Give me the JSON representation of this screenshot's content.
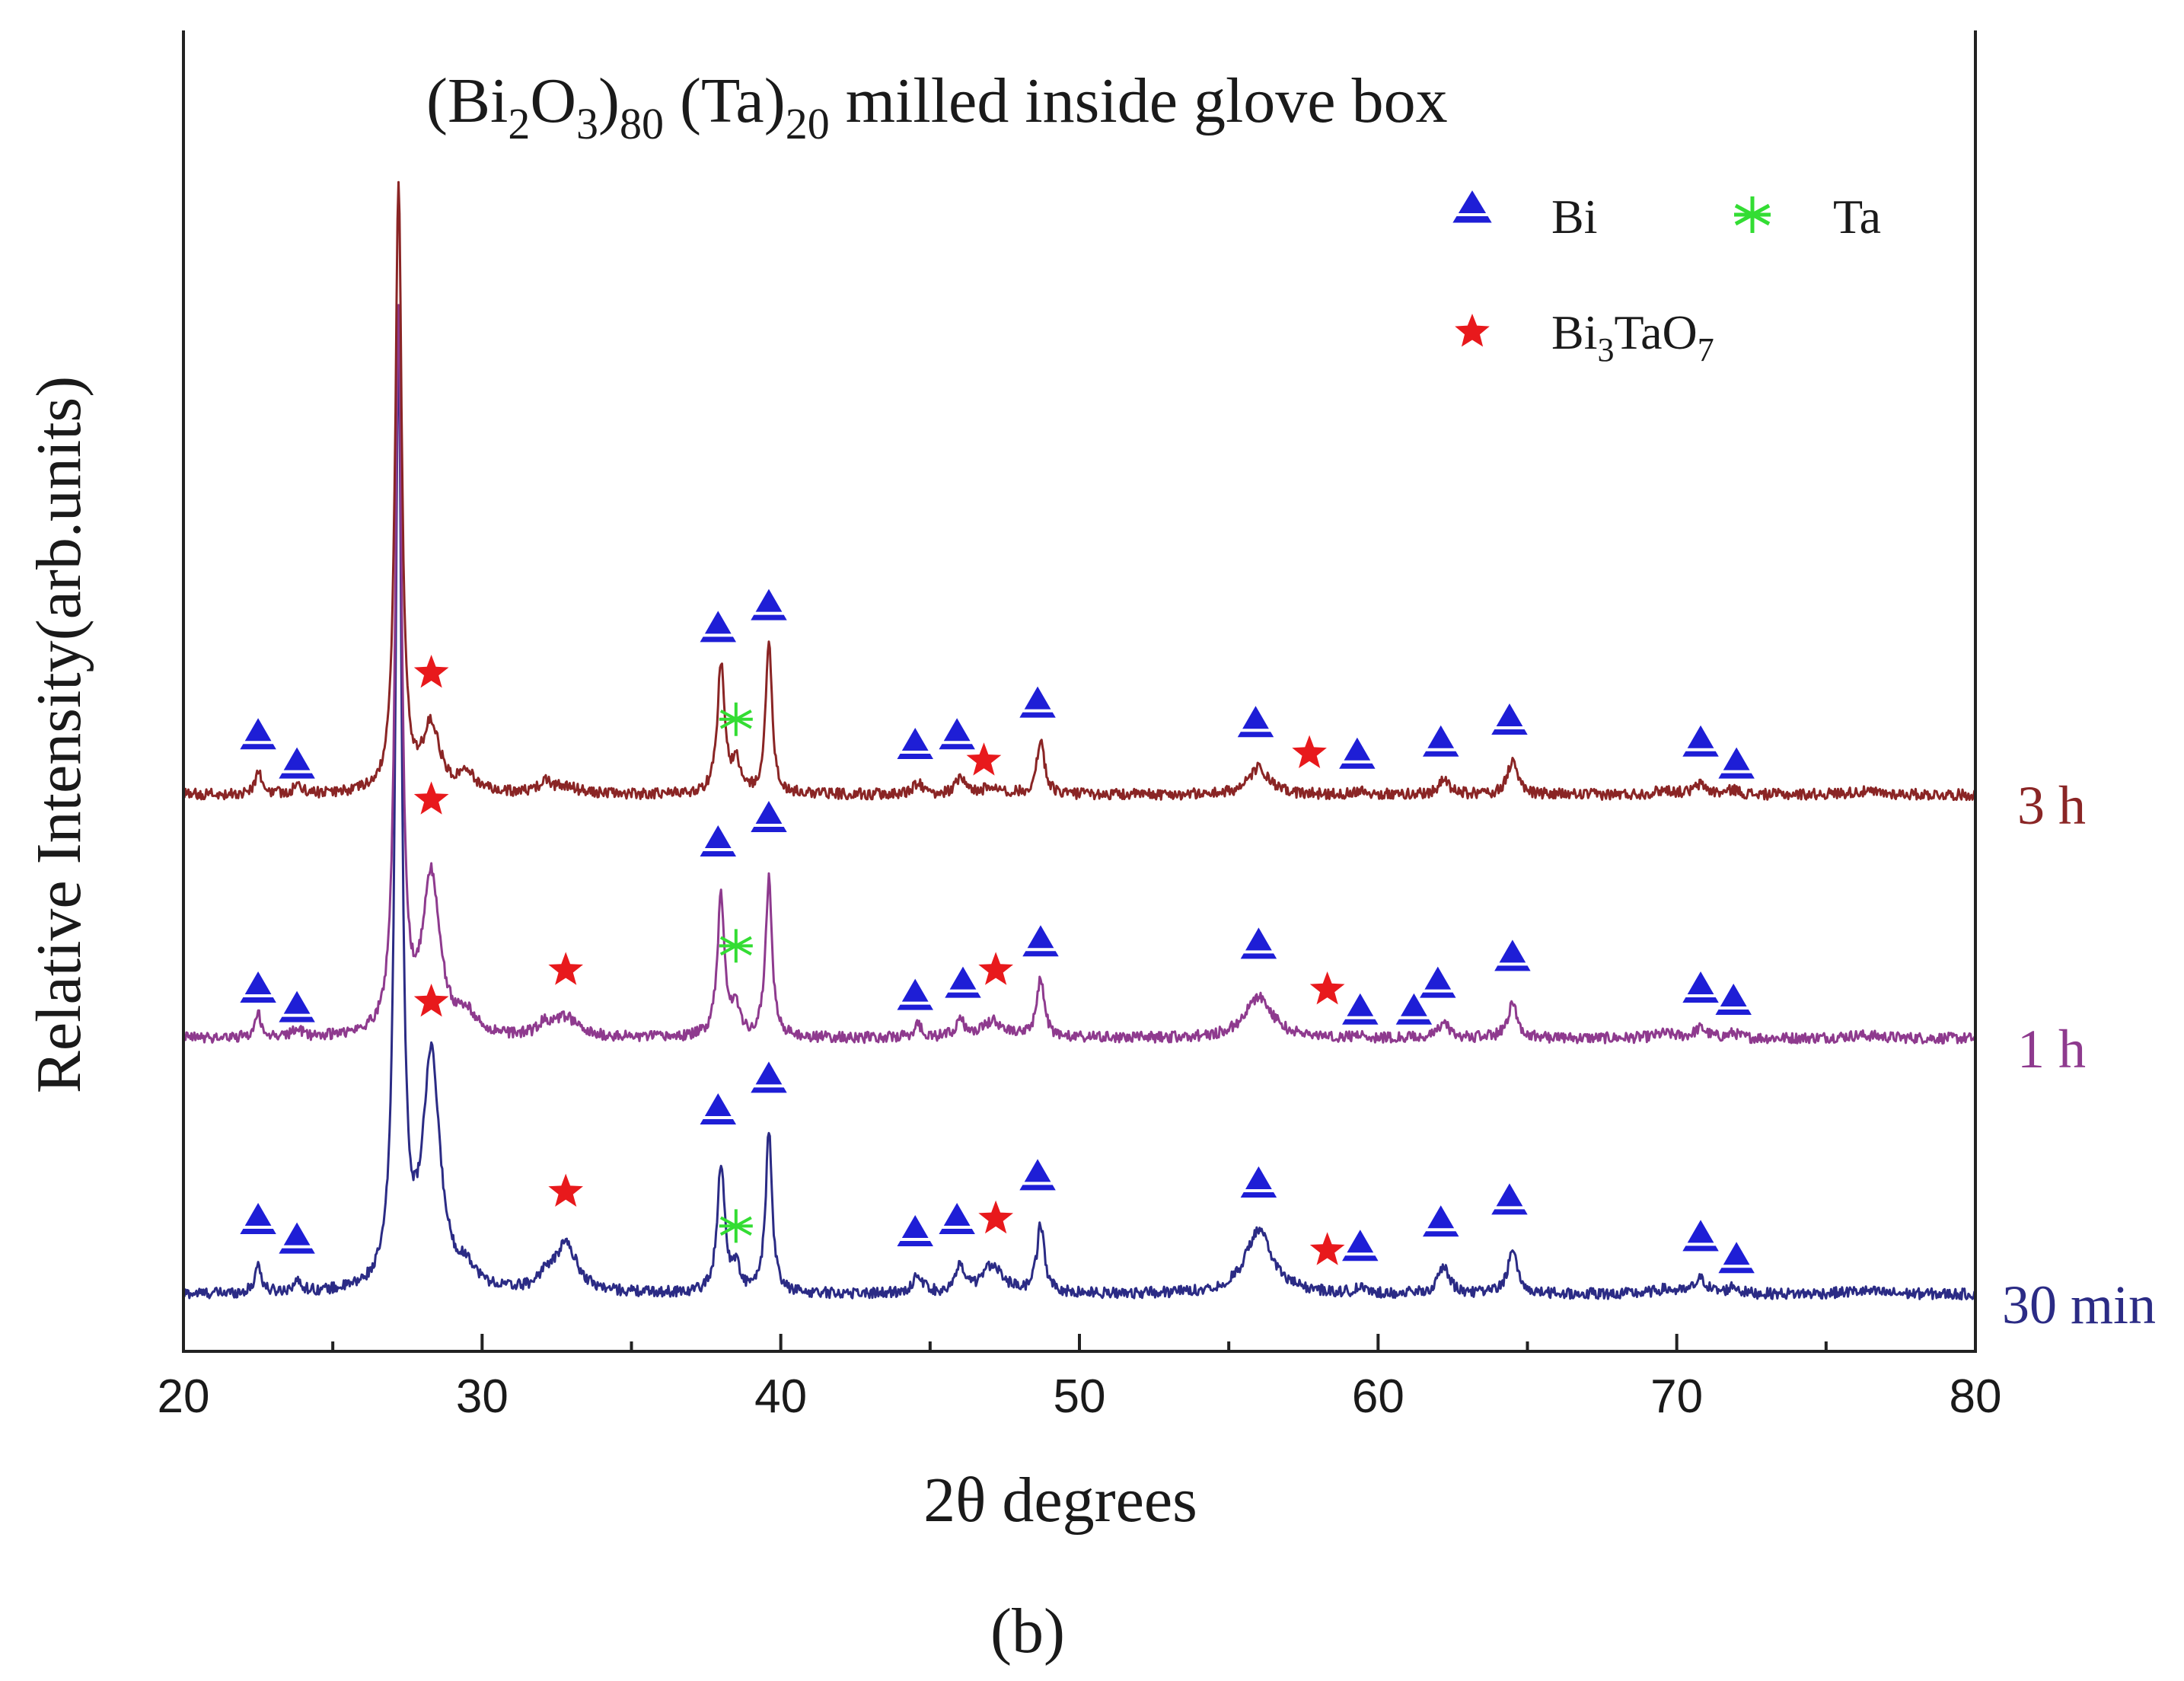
{
  "chart_data": {
    "type": "line",
    "title": {
      "prefix": "(Bi",
      "sub1": "2",
      "mid1": "O",
      "sub2": "3",
      "mid2": ")",
      "sub3": "80",
      "mid3": " (Ta)",
      "sub4": "20",
      "suffix": " milled inside glove box"
    },
    "xlabel": "2θ degrees",
    "ylabel": "Relative Intensity(arb.units)",
    "xlim": [
      20,
      80
    ],
    "x_ticks": [
      "20",
      "30",
      "40",
      "50",
      "60",
      "70",
      "80"
    ],
    "caption": "(b)",
    "legend": {
      "placement": "top-right",
      "entries": [
        {
          "name": "Bi",
          "marker": "triangle",
          "color": "#1e1ed6"
        },
        {
          "name": "Ta",
          "marker": "asterisk",
          "color": "#33dd33"
        },
        {
          "name_main": "Bi",
          "name_sub1": "3",
          "name_mid": "TaO",
          "name_sub2": "7",
          "marker": "star",
          "color": "#e8191c"
        }
      ]
    },
    "background_peaks": [
      {
        "x": 29.5,
        "h": 0.12,
        "w": 0.35
      },
      {
        "x": 32.1,
        "h": 0.08,
        "w": 0.25
      },
      {
        "x": 69.6,
        "h": 0.03,
        "w": 0.4
      },
      {
        "x": 76.2,
        "h": 0.02,
        "w": 0.8
      }
    ],
    "series": [
      {
        "name": "30 min",
        "color": "#2b2b85",
        "baseline_y": 0,
        "peaks": [
          {
            "x": 22.5,
            "h": 0.12,
            "w": 0.12
          },
          {
            "x": 23.8,
            "h": 0.04,
            "w": 0.2
          },
          {
            "x": 27.2,
            "h": 3.85,
            "w": 0.13
          },
          {
            "x": 28.3,
            "h": 0.95,
            "w": 0.35
          },
          {
            "x": 32.8,
            "h": 0.2,
            "w": 0.45
          },
          {
            "x": 38.0,
            "h": 0.53,
            "w": 0.15
          },
          {
            "x": 38.5,
            "h": 0.1,
            "w": 0.15
          },
          {
            "x": 39.6,
            "h": 0.66,
            "w": 0.13
          },
          {
            "x": 44.6,
            "h": 0.08,
            "w": 0.18
          },
          {
            "x": 46.0,
            "h": 0.1,
            "w": 0.18
          },
          {
            "x": 47.1,
            "h": 0.12,
            "w": 0.4
          },
          {
            "x": 48.7,
            "h": 0.28,
            "w": 0.15
          },
          {
            "x": 56.0,
            "h": 0.26,
            "w": 0.55
          },
          {
            "x": 59.4,
            "h": 0.02,
            "w": 0.2
          },
          {
            "x": 62.2,
            "h": 0.11,
            "w": 0.22
          },
          {
            "x": 64.5,
            "h": 0.17,
            "w": 0.2
          },
          {
            "x": 70.8,
            "h": 0.06,
            "w": 0.25
          },
          {
            "x": 71.9,
            "h": 0.03,
            "w": 0.2
          }
        ],
        "markers": [
          {
            "type": "triangle",
            "x": 22.5,
            "y": 0.3
          },
          {
            "type": "triangle",
            "x": 23.8,
            "y": 0.22
          },
          {
            "type": "star",
            "x": 28.3,
            "y": 1.2
          },
          {
            "type": "star",
            "x": 32.8,
            "y": 0.42
          },
          {
            "type": "triangle",
            "x": 37.9,
            "y": 0.75
          },
          {
            "type": "asterisk",
            "x": 38.5,
            "y": 0.28
          },
          {
            "type": "triangle",
            "x": 39.6,
            "y": 0.88
          },
          {
            "type": "triangle",
            "x": 44.5,
            "y": 0.25
          },
          {
            "type": "triangle",
            "x": 45.9,
            "y": 0.3
          },
          {
            "type": "star",
            "x": 47.2,
            "y": 0.31
          },
          {
            "type": "triangle",
            "x": 48.6,
            "y": 0.48
          },
          {
            "type": "triangle",
            "x": 56.0,
            "y": 0.45
          },
          {
            "type": "star",
            "x": 58.3,
            "y": 0.18
          },
          {
            "type": "triangle",
            "x": 59.4,
            "y": 0.19
          },
          {
            "type": "triangle",
            "x": 62.1,
            "y": 0.29
          },
          {
            "type": "triangle",
            "x": 64.4,
            "y": 0.38
          },
          {
            "type": "triangle",
            "x": 70.8,
            "y": 0.23
          },
          {
            "type": "triangle",
            "x": 72.0,
            "y": 0.14
          }
        ]
      },
      {
        "name": "1 h",
        "color": "#8e3a8e",
        "baseline_y": 1.05,
        "peaks": [
          {
            "x": 22.5,
            "h": 0.1,
            "w": 0.12
          },
          {
            "x": 23.8,
            "h": 0.03,
            "w": 0.2
          },
          {
            "x": 27.2,
            "h": 2.95,
            "w": 0.13
          },
          {
            "x": 28.3,
            "h": 0.65,
            "w": 0.35
          },
          {
            "x": 32.8,
            "h": 0.08,
            "w": 0.45
          },
          {
            "x": 38.0,
            "h": 0.58,
            "w": 0.15
          },
          {
            "x": 38.5,
            "h": 0.12,
            "w": 0.15
          },
          {
            "x": 39.6,
            "h": 0.65,
            "w": 0.13
          },
          {
            "x": 44.6,
            "h": 0.05,
            "w": 0.18
          },
          {
            "x": 46.0,
            "h": 0.07,
            "w": 0.18
          },
          {
            "x": 47.1,
            "h": 0.07,
            "w": 0.4
          },
          {
            "x": 48.7,
            "h": 0.25,
            "w": 0.15
          },
          {
            "x": 56.0,
            "h": 0.17,
            "w": 0.55
          },
          {
            "x": 59.4,
            "h": 0.01,
            "w": 0.2
          },
          {
            "x": 62.2,
            "h": 0.06,
            "w": 0.22
          },
          {
            "x": 64.5,
            "h": 0.14,
            "w": 0.2
          },
          {
            "x": 70.8,
            "h": 0.04,
            "w": 0.25
          },
          {
            "x": 71.9,
            "h": 0.02,
            "w": 0.2
          }
        ],
        "markers": [
          {
            "type": "triangle",
            "x": 22.5,
            "y": 0.2
          },
          {
            "type": "triangle",
            "x": 23.8,
            "y": 0.12
          },
          {
            "type": "star",
            "x": 28.3,
            "y": 0.98
          },
          {
            "type": "star",
            "x": 32.8,
            "y": 0.28
          },
          {
            "type": "triangle",
            "x": 37.9,
            "y": 0.8
          },
          {
            "type": "asterisk",
            "x": 38.5,
            "y": 0.38
          },
          {
            "type": "triangle",
            "x": 39.6,
            "y": 0.9
          },
          {
            "type": "triangle",
            "x": 44.5,
            "y": 0.17
          },
          {
            "type": "triangle",
            "x": 46.1,
            "y": 0.22
          },
          {
            "type": "star",
            "x": 47.2,
            "y": 0.28
          },
          {
            "type": "triangle",
            "x": 48.7,
            "y": 0.39
          },
          {
            "type": "triangle",
            "x": 56.0,
            "y": 0.38
          },
          {
            "type": "star",
            "x": 58.3,
            "y": 0.2
          },
          {
            "type": "triangle",
            "x": 59.4,
            "y": 0.11
          },
          {
            "type": "triangle",
            "x": 61.2,
            "y": 0.11
          },
          {
            "type": "triangle",
            "x": 62.0,
            "y": 0.22
          },
          {
            "type": "triangle",
            "x": 64.5,
            "y": 0.33
          },
          {
            "type": "triangle",
            "x": 70.8,
            "y": 0.2
          },
          {
            "type": "triangle",
            "x": 71.9,
            "y": 0.15
          }
        ]
      },
      {
        "name": "3 h",
        "color": "#8a2525",
        "baseline_y": 2.05,
        "peaks": [
          {
            "x": 22.5,
            "h": 0.1,
            "w": 0.12
          },
          {
            "x": 23.8,
            "h": 0.03,
            "w": 0.2
          },
          {
            "x": 27.2,
            "h": 2.5,
            "w": 0.13
          },
          {
            "x": 28.3,
            "h": 0.27,
            "w": 0.35
          },
          {
            "x": 32.8,
            "h": 0.03,
            "w": 0.45
          },
          {
            "x": 38.0,
            "h": 0.53,
            "w": 0.15
          },
          {
            "x": 38.5,
            "h": 0.12,
            "w": 0.15
          },
          {
            "x": 39.6,
            "h": 0.61,
            "w": 0.13
          },
          {
            "x": 44.6,
            "h": 0.05,
            "w": 0.18
          },
          {
            "x": 46.0,
            "h": 0.07,
            "w": 0.18
          },
          {
            "x": 47.1,
            "h": 0.03,
            "w": 0.4
          },
          {
            "x": 48.7,
            "h": 0.23,
            "w": 0.15
          },
          {
            "x": 56.0,
            "h": 0.11,
            "w": 0.4
          },
          {
            "x": 59.4,
            "h": 0.02,
            "w": 0.2
          },
          {
            "x": 62.2,
            "h": 0.06,
            "w": 0.22
          },
          {
            "x": 64.5,
            "h": 0.14,
            "w": 0.2
          },
          {
            "x": 70.8,
            "h": 0.04,
            "w": 0.25
          },
          {
            "x": 71.9,
            "h": 0.02,
            "w": 0.2
          }
        ],
        "markers": [
          {
            "type": "triangle",
            "x": 22.5,
            "y": 0.24
          },
          {
            "type": "triangle",
            "x": 23.8,
            "y": 0.12
          },
          {
            "type": "star",
            "x": 28.3,
            "y": 0.5
          },
          {
            "type": "triangle",
            "x": 37.9,
            "y": 0.68
          },
          {
            "type": "asterisk",
            "x": 38.5,
            "y": 0.31
          },
          {
            "type": "triangle",
            "x": 39.6,
            "y": 0.77
          },
          {
            "type": "triangle",
            "x": 44.5,
            "y": 0.2
          },
          {
            "type": "triangle",
            "x": 45.9,
            "y": 0.24
          },
          {
            "type": "star",
            "x": 46.8,
            "y": 0.14
          },
          {
            "type": "triangle",
            "x": 48.6,
            "y": 0.37
          },
          {
            "type": "triangle",
            "x": 55.9,
            "y": 0.29
          },
          {
            "type": "star",
            "x": 57.7,
            "y": 0.17
          },
          {
            "type": "triangle",
            "x": 59.3,
            "y": 0.16
          },
          {
            "type": "triangle",
            "x": 62.1,
            "y": 0.21
          },
          {
            "type": "triangle",
            "x": 64.4,
            "y": 0.3
          },
          {
            "type": "triangle",
            "x": 70.8,
            "y": 0.21
          },
          {
            "type": "triangle",
            "x": 72.0,
            "y": 0.12
          }
        ]
      }
    ]
  }
}
